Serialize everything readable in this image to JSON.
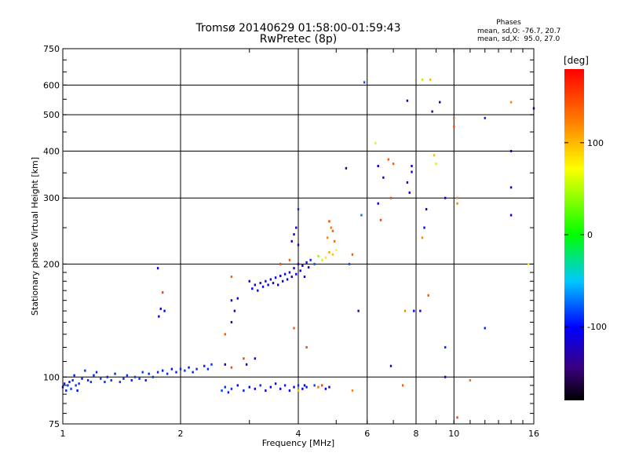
{
  "chart_data": {
    "type": "scatter",
    "title": "Tromsø 20140629 01:58:00-01:59:43",
    "subtitle": "RwPretec (8p)",
    "phases_header": "Phases",
    "phases_line1": "mean, sd,O: -76.7, 20.7",
    "phases_line2": "mean, sd,X:  95.0, 27.0",
    "xlabel": "Frequency [MHz]",
    "ylabel": "Stationary phase Virtual Height [km]",
    "xscale": "log",
    "yscale": "log",
    "xlim": [
      1,
      16
    ],
    "ylim": [
      75,
      750
    ],
    "xticks": [
      1,
      2,
      4,
      6,
      8,
      10,
      16
    ],
    "yticks": [
      75,
      100,
      200,
      300,
      400,
      500,
      600,
      750
    ],
    "grid": true,
    "colorbar": {
      "label": "[deg]",
      "range": [
        -180,
        180
      ],
      "ticks": [
        100,
        0,
        -100
      ]
    },
    "points": [
      [
        1.0,
        94,
        -95
      ],
      [
        1.01,
        96,
        -92
      ],
      [
        1.02,
        92,
        -90
      ],
      [
        1.03,
        95,
        -88
      ],
      [
        1.04,
        97,
        -96
      ],
      [
        1.05,
        93,
        -85
      ],
      [
        1.06,
        98,
        -90
      ],
      [
        1.07,
        101,
        -94
      ],
      [
        1.08,
        95,
        -87
      ],
      [
        1.09,
        92,
        -100
      ],
      [
        1.1,
        96,
        -89
      ],
      [
        1.12,
        99,
        -93
      ],
      [
        1.14,
        104,
        -88
      ],
      [
        1.16,
        98,
        -92
      ],
      [
        1.18,
        97,
        -86
      ],
      [
        1.2,
        101,
        -95
      ],
      [
        1.22,
        103,
        -90
      ],
      [
        1.25,
        99,
        -84
      ],
      [
        1.28,
        97,
        -89
      ],
      [
        1.3,
        100,
        -93
      ],
      [
        1.33,
        98,
        -87
      ],
      [
        1.36,
        102,
        -91
      ],
      [
        1.4,
        97,
        -85
      ],
      [
        1.43,
        99,
        -90
      ],
      [
        1.46,
        101,
        -88
      ],
      [
        1.5,
        98,
        -92
      ],
      [
        1.53,
        100,
        -86
      ],
      [
        1.57,
        99,
        -89
      ],
      [
        1.6,
        103,
        -85
      ],
      [
        1.63,
        98,
        -93
      ],
      [
        1.66,
        102,
        -90
      ],
      [
        1.7,
        100,
        -87
      ],
      [
        1.75,
        103,
        -91
      ],
      [
        1.8,
        104,
        -94
      ],
      [
        1.85,
        102,
        -89
      ],
      [
        1.9,
        105,
        -97
      ],
      [
        1.95,
        103,
        -92
      ],
      [
        2.0,
        105,
        -90
      ],
      [
        2.05,
        104,
        -88
      ],
      [
        2.1,
        106,
        -95
      ],
      [
        2.15,
        103,
        -91
      ],
      [
        2.2,
        105,
        -89
      ],
      [
        2.3,
        107,
        -93
      ],
      [
        2.35,
        105,
        -90
      ],
      [
        2.4,
        108,
        -87
      ],
      [
        1.75,
        195,
        -105
      ],
      [
        1.78,
        152,
        -110
      ],
      [
        1.82,
        150,
        -100
      ],
      [
        1.8,
        168,
        150
      ],
      [
        1.76,
        145,
        -112
      ],
      [
        2.55,
        92,
        -85
      ],
      [
        2.6,
        94,
        -90
      ],
      [
        2.65,
        91,
        -95
      ],
      [
        2.7,
        93,
        -88
      ],
      [
        2.8,
        95,
        -105
      ],
      [
        2.9,
        92,
        -92
      ],
      [
        3.0,
        94,
        -100
      ],
      [
        3.1,
        93,
        -110
      ],
      [
        3.2,
        95,
        -90
      ],
      [
        3.3,
        92,
        -115
      ],
      [
        3.4,
        94,
        -100
      ],
      [
        3.5,
        96,
        -120
      ],
      [
        3.6,
        93,
        -105
      ],
      [
        3.7,
        95,
        -95
      ],
      [
        3.8,
        92,
        -110
      ],
      [
        3.9,
        94,
        -100
      ],
      [
        4.0,
        95,
        -90
      ],
      [
        4.1,
        93,
        -105
      ],
      [
        4.2,
        94,
        -95
      ],
      [
        4.4,
        95,
        -85
      ],
      [
        4.5,
        94,
        130
      ],
      [
        4.6,
        95,
        155
      ],
      [
        4.7,
        93,
        -110
      ],
      [
        4.8,
        94,
        -120
      ],
      [
        2.6,
        130,
        140
      ],
      [
        2.7,
        160,
        -130
      ],
      [
        2.8,
        162,
        -110
      ],
      [
        2.7,
        106,
        150
      ],
      [
        2.6,
        108,
        -110
      ],
      [
        2.9,
        112,
        150
      ],
      [
        3.1,
        112,
        -110
      ],
      [
        2.95,
        108,
        -120
      ],
      [
        2.7,
        185,
        140
      ],
      [
        3.0,
        180,
        -110
      ],
      [
        3.05,
        172,
        -100
      ],
      [
        3.1,
        176,
        -115
      ],
      [
        3.15,
        170,
        -105
      ],
      [
        3.2,
        178,
        -120
      ],
      [
        3.25,
        174,
        -108
      ],
      [
        3.3,
        180,
        -112
      ],
      [
        3.35,
        176,
        -100
      ],
      [
        3.4,
        182,
        -118
      ],
      [
        3.45,
        178,
        -110
      ],
      [
        3.5,
        184,
        -105
      ],
      [
        3.55,
        176,
        -112
      ],
      [
        3.6,
        186,
        -120
      ],
      [
        3.65,
        180,
        -108
      ],
      [
        3.7,
        188,
        -115
      ],
      [
        3.75,
        182,
        -100
      ],
      [
        3.8,
        190,
        -118
      ],
      [
        3.85,
        185,
        -110
      ],
      [
        3.9,
        195,
        -125
      ],
      [
        3.95,
        188,
        -115
      ],
      [
        4.0,
        200,
        -120
      ],
      [
        4.05,
        192,
        -110
      ],
      [
        4.1,
        198,
        -118
      ],
      [
        4.15,
        185,
        -100
      ],
      [
        4.2,
        202,
        -112
      ],
      [
        4.25,
        196,
        -105
      ],
      [
        4.3,
        205,
        -90
      ],
      [
        4.4,
        200,
        -80
      ],
      [
        4.5,
        210,
        40
      ],
      [
        4.6,
        205,
        60
      ],
      [
        4.7,
        208,
        80
      ],
      [
        4.8,
        215,
        110
      ],
      [
        4.9,
        212,
        95
      ],
      [
        5.0,
        218,
        70
      ],
      [
        3.9,
        240,
        -110
      ],
      [
        3.95,
        250,
        -120
      ],
      [
        4.0,
        280,
        -90
      ],
      [
        3.85,
        230,
        -130
      ],
      [
        4.0,
        225,
        -140
      ],
      [
        4.8,
        260,
        150
      ],
      [
        4.85,
        250,
        130
      ],
      [
        4.9,
        245,
        140
      ],
      [
        4.75,
        235,
        120
      ],
      [
        4.95,
        230,
        135
      ],
      [
        3.6,
        200,
        150
      ],
      [
        3.8,
        205,
        140
      ],
      [
        2.7,
        140,
        -130
      ],
      [
        2.75,
        150,
        -120
      ],
      [
        5.3,
        360,
        -120
      ],
      [
        5.4,
        200,
        -80
      ],
      [
        5.5,
        212,
        140
      ],
      [
        5.5,
        92,
        120
      ],
      [
        5.9,
        610,
        -80
      ],
      [
        5.8,
        270,
        -70
      ],
      [
        5.7,
        150,
        -120
      ],
      [
        6.3,
        420,
        60
      ],
      [
        6.4,
        365,
        -110
      ],
      [
        6.5,
        262,
        150
      ],
      [
        6.4,
        290,
        -110
      ],
      [
        6.6,
        340,
        -110
      ],
      [
        6.8,
        380,
        140
      ],
      [
        6.9,
        300,
        150
      ],
      [
        6.9,
        107,
        -120
      ],
      [
        7.0,
        370,
        140
      ],
      [
        7.4,
        95,
        140
      ],
      [
        7.5,
        150,
        120
      ],
      [
        7.6,
        330,
        -100
      ],
      [
        7.7,
        310,
        -110
      ],
      [
        7.6,
        545,
        -100
      ],
      [
        7.8,
        365,
        -110
      ],
      [
        7.8,
        352,
        -120
      ],
      [
        7.9,
        150,
        -110
      ],
      [
        8.2,
        150,
        -120
      ],
      [
        8.3,
        620,
        50
      ],
      [
        8.3,
        235,
        120
      ],
      [
        8.4,
        250,
        -110
      ],
      [
        8.5,
        280,
        -110
      ],
      [
        8.6,
        165,
        140
      ],
      [
        8.7,
        620,
        100
      ],
      [
        8.8,
        510,
        -130
      ],
      [
        8.9,
        390,
        100
      ],
      [
        9.0,
        370,
        60
      ],
      [
        9.2,
        540,
        -130
      ],
      [
        9.5,
        300,
        -110
      ],
      [
        9.5,
        120,
        -90
      ],
      [
        9.5,
        100,
        -120
      ],
      [
        10.0,
        490,
        140
      ],
      [
        10.0,
        465,
        150
      ],
      [
        10.2,
        300,
        120
      ],
      [
        10.2,
        290,
        120
      ],
      [
        10.2,
        78,
        150
      ],
      [
        11.0,
        98,
        130
      ],
      [
        12.0,
        490,
        -90
      ],
      [
        12.0,
        135,
        -90
      ],
      [
        14.0,
        540,
        120
      ],
      [
        14.0,
        400,
        -110
      ],
      [
        14.0,
        320,
        -120
      ],
      [
        14.0,
        270,
        -110
      ],
      [
        15.5,
        200,
        80
      ],
      [
        16.0,
        520,
        -120
      ],
      [
        4.2,
        120,
        150
      ],
      [
        4.15,
        95,
        -100
      ],
      [
        3.9,
        135,
        140
      ],
      [
        4.0,
        92,
        100
      ]
    ]
  }
}
